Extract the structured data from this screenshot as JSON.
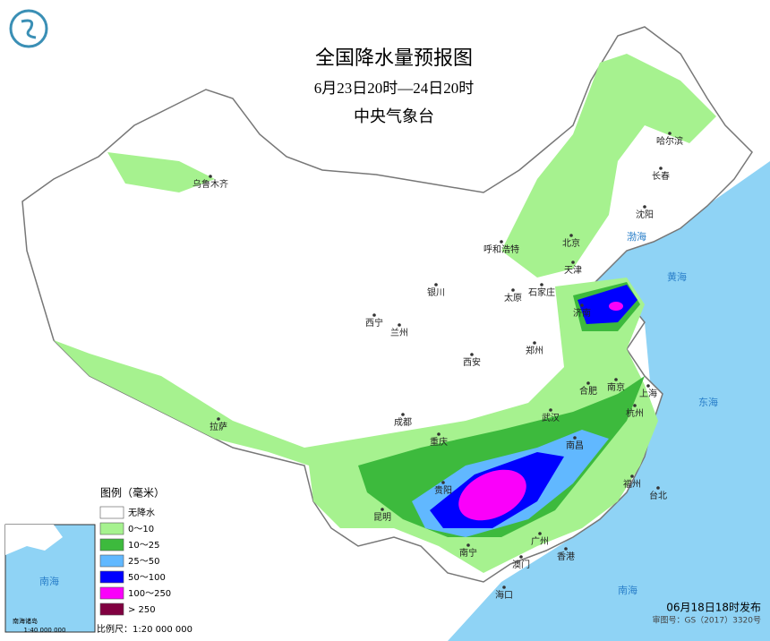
{
  "title": "全国降水量预报图",
  "subtitle": "6月23日20时—24日20时",
  "agency": "中央气象台",
  "legend": {
    "title": "图例（毫米）",
    "items": [
      {
        "label": "无降水",
        "color": "#ffffff"
      },
      {
        "label": "0～10",
        "color": "#a6f28f"
      },
      {
        "label": "10～25",
        "color": "#3dba3d"
      },
      {
        "label": "25～50",
        "color": "#61b8ff"
      },
      {
        "label": "50～100",
        "color": "#0000ff"
      },
      {
        "label": "100～250",
        "color": "#fa00fa"
      },
      {
        "label": "> 250",
        "color": "#800040"
      }
    ]
  },
  "cities": [
    "哈尔滨",
    "长春",
    "沈阳",
    "乌鲁木齐",
    "呼和浩特",
    "北京",
    "天津",
    "石家庄",
    "太原",
    "银川",
    "济南",
    "西宁",
    "兰州",
    "郑州",
    "西安",
    "合肥",
    "南京",
    "上海",
    "成都",
    "武汉",
    "杭州",
    "拉萨",
    "重庆",
    "南昌",
    "贵阳",
    "福州",
    "台北",
    "昆明",
    "南宁",
    "广州",
    "香港",
    "澳门",
    "海口"
  ],
  "seas": [
    "渤海",
    "黄海",
    "东海",
    "南海"
  ],
  "inset": {
    "labels": [
      "南海",
      "南海诸岛"
    ],
    "scale": "1:40 000 000"
  },
  "footer": {
    "issued": "06月18日18时发布",
    "review": "审图号：GS（2017）3320号",
    "scale": "比例尺：1:20 000 000"
  }
}
